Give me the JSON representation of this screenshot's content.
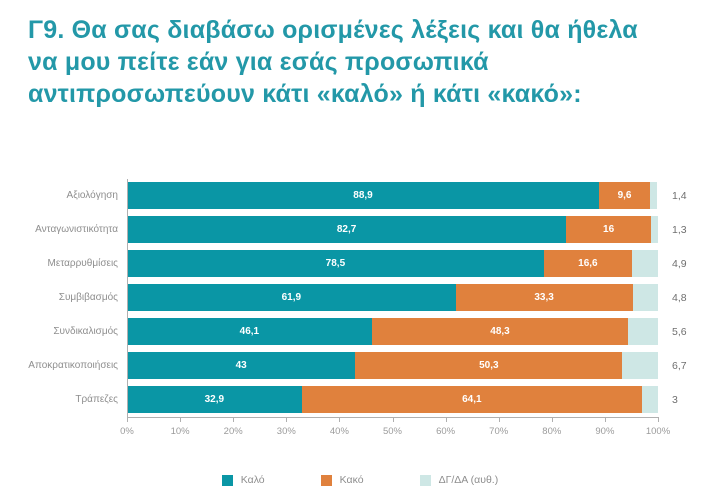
{
  "colors": {
    "title": "#2398a8",
    "category_label": "#8e8e8e",
    "side_value": "#6f6f6f",
    "bar_value": "#ffffff",
    "axis": "#b0b0b0",
    "tick_label": "#9b9b9b",
    "legend_label": "#8e8e8e"
  },
  "chart_data": {
    "type": "bar",
    "variant": "horizontal-stacked",
    "title": "Γ9. Θα σας διαβάσω ορισμένες λέξεις και θα ήθελα να μου πείτε εάν για εσάς προσωπικά αντιπροσωπεύουν κάτι «καλό» ή κάτι «κακό»:",
    "categories": [
      "Αξιολόγηση",
      "Ανταγωνιστικότητα",
      "Μεταρρυθμίσεις",
      "Συμβιβασμός",
      "Συνδικαλισμός",
      "Αποκρατικοποιήσεις",
      "Τράπεζες"
    ],
    "series": [
      {
        "key": "kalo",
        "name": "Καλό",
        "color": "#0a96a5",
        "values": [
          88.9,
          82.7,
          78.5,
          61.9,
          46.1,
          43,
          32.9
        ],
        "labels": [
          "88,9",
          "82,7",
          "78,5",
          "61,9",
          "46,1",
          "43",
          "32,9"
        ],
        "labels_inside": true
      },
      {
        "key": "kako",
        "name": "Κακό",
        "color": "#e0813d",
        "values": [
          9.6,
          16,
          16.6,
          33.3,
          48.3,
          50.3,
          64.1
        ],
        "labels": [
          "9,6",
          "16",
          "16,6",
          "33,3",
          "48,3",
          "50,3",
          "64,1"
        ],
        "labels_inside": true
      },
      {
        "key": "dgda",
        "name": "ΔΓ/ΔΑ (αυθ.)",
        "color": "#cee7e5",
        "values": [
          1.4,
          1.3,
          4.9,
          4.8,
          5.6,
          6.7,
          3
        ],
        "labels": [
          "1,4",
          "1,3",
          "4,9",
          "4,8",
          "5,6",
          "6,7",
          "3"
        ],
        "labels_inside": false
      }
    ],
    "x_ticks": [
      "0%",
      "10%",
      "20%",
      "30%",
      "40%",
      "50%",
      "60%",
      "70%",
      "80%",
      "90%",
      "100%"
    ],
    "xlim": [
      0,
      100
    ],
    "grid": false,
    "legend_position": "bottom"
  }
}
